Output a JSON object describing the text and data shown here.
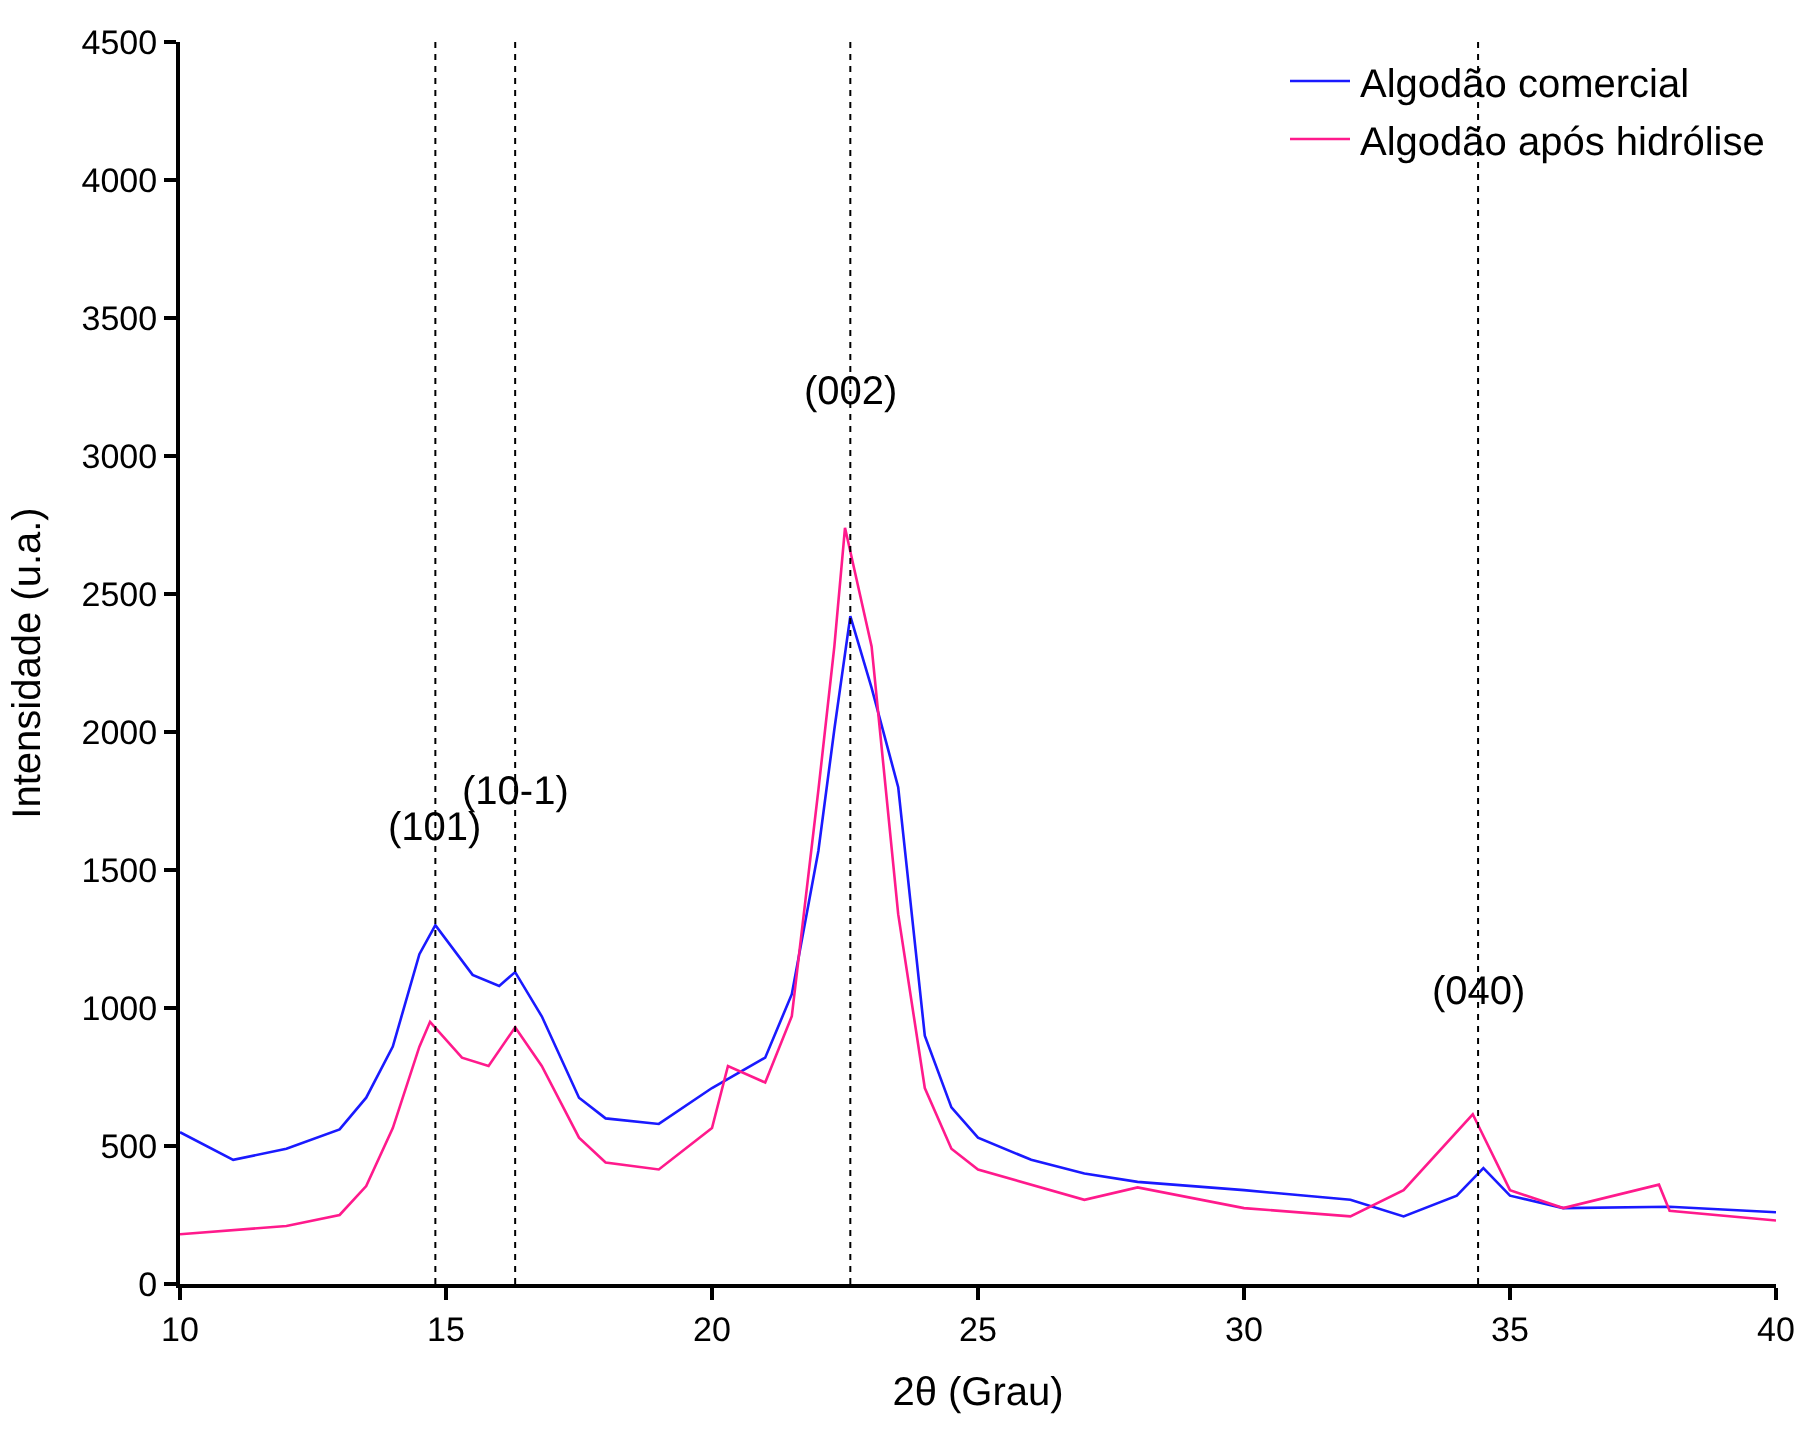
{
  "chart_data": {
    "type": "line",
    "xlabel": "2θ (Grau)",
    "ylabel": "Intensidade (u.a.)",
    "xlim": [
      10,
      40
    ],
    "xticks": [
      10,
      15,
      20,
      25,
      30,
      35,
      40
    ],
    "ylim": [
      0,
      4500
    ],
    "yticks": [
      0,
      500,
      1000,
      1500,
      2000,
      2500,
      3000,
      3500,
      4000,
      4500
    ],
    "legend": "top right",
    "marker": "none",
    "line_style": "solid",
    "series": [
      {
        "name": "Algodão comercial",
        "color": "#1a1aff",
        "x": [
          10,
          11,
          12,
          13,
          13.5,
          14,
          14.5,
          14.8,
          15.5,
          16,
          16.3,
          16.8,
          17.5,
          18,
          19,
          20,
          21,
          21.5,
          22,
          22.3,
          22.6,
          23,
          23.5,
          24,
          24.5,
          25,
          26,
          27,
          28,
          30,
          32,
          33,
          34,
          34.5,
          35,
          36,
          38,
          40
        ],
        "values": [
          550,
          450,
          490,
          560,
          675,
          860,
          1195,
          1300,
          1120,
          1080,
          1130,
          970,
          675,
          600,
          580,
          710,
          820,
          1050,
          1570,
          2010,
          2420,
          2160,
          1800,
          900,
          640,
          530,
          450,
          400,
          370,
          340,
          305,
          245,
          320,
          420,
          320,
          275,
          280,
          260
        ]
      },
      {
        "name": "Algodão após hidrólise",
        "color": "#ff1a8c",
        "x": [
          10,
          12,
          13,
          13.5,
          14,
          14.5,
          14.7,
          15.3,
          15.8,
          16.3,
          16.8,
          17.5,
          18,
          19,
          20,
          20.3,
          21,
          21.5,
          22,
          22.3,
          22.5,
          23,
          23.5,
          24,
          24.5,
          25,
          27,
          28,
          30,
          32,
          33,
          34.3,
          35,
          36,
          37.8,
          38,
          40
        ],
        "values": [
          180,
          210,
          250,
          355,
          565,
          860,
          950,
          820,
          790,
          930,
          790,
          530,
          440,
          415,
          565,
          790,
          730,
          970,
          1790,
          2310,
          2740,
          2310,
          1340,
          710,
          490,
          415,
          305,
          350,
          275,
          245,
          340,
          615,
          340,
          275,
          360,
          265,
          230
        ]
      }
    ],
    "ref_lines": [
      {
        "axis": "x",
        "value": 14.8,
        "color": "#000000",
        "line_style": "dotted"
      },
      {
        "axis": "x",
        "value": 16.3,
        "color": "#000000",
        "line_style": "dotted"
      },
      {
        "axis": "x",
        "value": 22.6,
        "color": "#000000",
        "line_style": "dotted"
      },
      {
        "axis": "x",
        "value": 34.4,
        "color": "#000000",
        "line_style": "dotted"
      }
    ],
    "annotations": [
      {
        "text": "(101)",
        "x": 14.8,
        "y": 1650
      },
      {
        "text": "(10-1)",
        "x": 16.3,
        "y": 1780
      },
      {
        "text": "(002)",
        "x": 22.6,
        "y": 3230
      },
      {
        "text": "(040)",
        "x": 34.4,
        "y": 1060
      }
    ]
  }
}
